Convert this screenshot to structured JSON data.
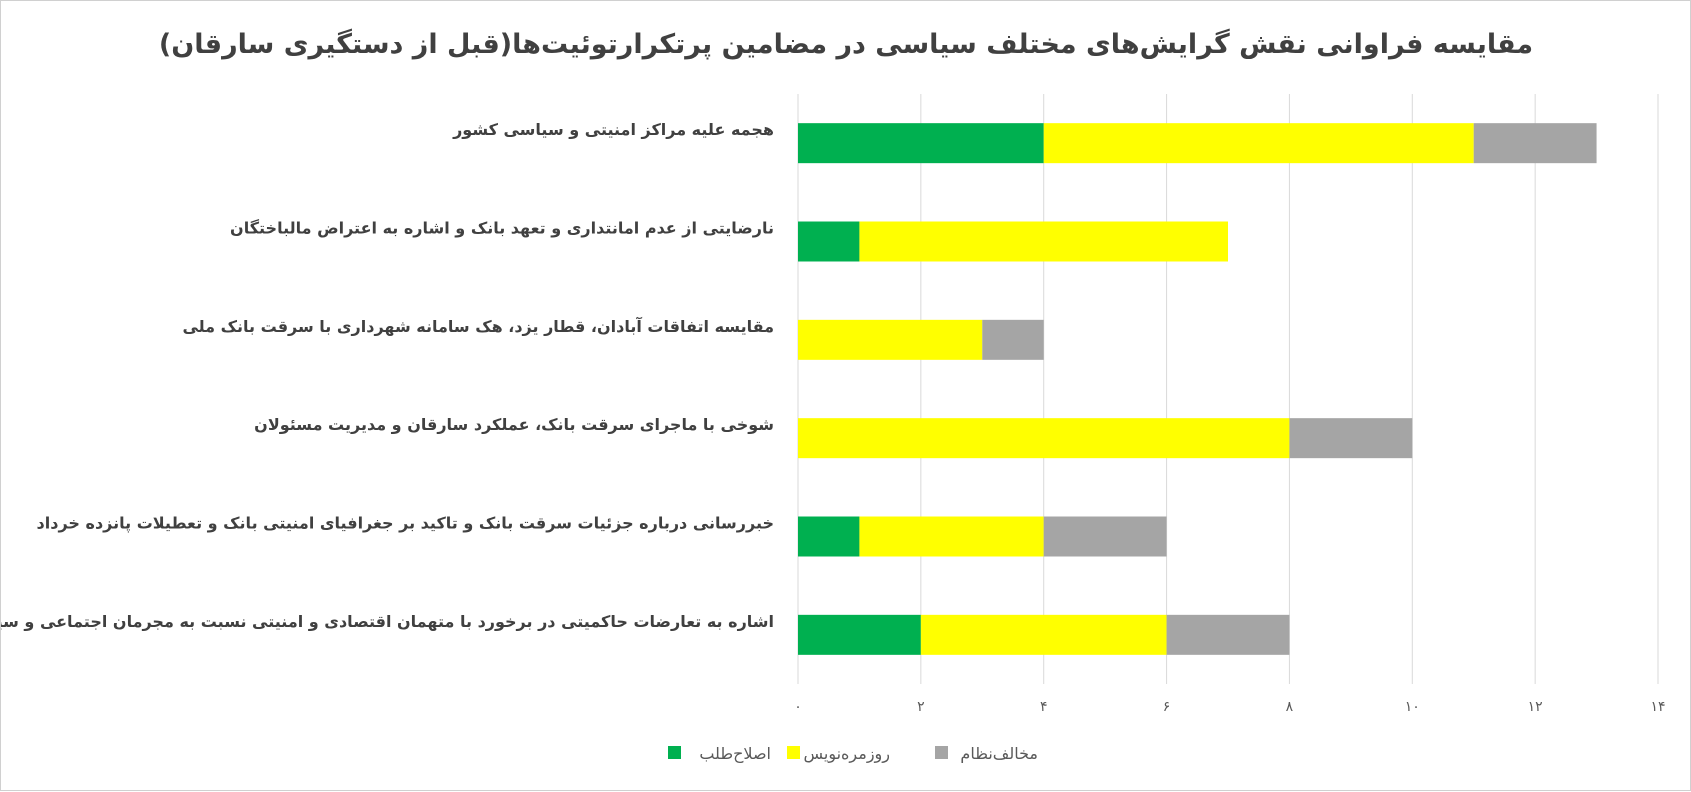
{
  "chart_data": {
    "type": "bar",
    "orientation": "horizontal",
    "stacked": true,
    "title": "مقایسه فراوانی نقش گرایش‌های مختلف سیاسی در مضامین پرتکرارتوئیت‌ها(قبل از دستگیری سارقان)",
    "categories": [
      "هجمه علیه مراکز امنیتی و سیاسی کشور",
      "نارضایتی از عدم امانتداری و تعهد بانک و اشاره به اعتراض مالباختگان",
      "مقایسه اتفاقات آبادان، قطار یزد، هک سامانه شهرداری با سرقت بانک ملی",
      "شوخی با ماجرای سرقت بانک، عملکرد سارقان و مدیریت مسئولان",
      "خبررسانی درباره جزئیات سرقت بانک و تاکید بر جغرافیای امنیتی بانک و تعطیلات پانزده خرداد",
      "اشاره به تعارضات حاکمیتی در برخورد با متهمان اقتصادی و امنیتی نسبت به مجرمان اجتماعی و سیاسی"
    ],
    "series": [
      {
        "name": "اصلاح‌طلب",
        "color": "#00b050",
        "values": [
          4,
          1,
          0,
          0,
          1,
          2
        ]
      },
      {
        "name": "روزمره‌نویس",
        "color": "#ffff00",
        "values": [
          7,
          6,
          3,
          8,
          3,
          4
        ]
      },
      {
        "name": "مخالف‌نظام",
        "color": "#a5a5a5",
        "values": [
          2,
          0,
          1,
          2,
          2,
          2
        ]
      }
    ],
    "xlim": [
      0,
      14
    ],
    "xticks": [
      0,
      2,
      4,
      6,
      8,
      10,
      12,
      14
    ],
    "xtick_labels": [
      "۰",
      "۲",
      "۴",
      "۶",
      "۸",
      "۱۰",
      "۱۲",
      "۱۴"
    ],
    "grid": true,
    "legend_position": "bottom"
  }
}
